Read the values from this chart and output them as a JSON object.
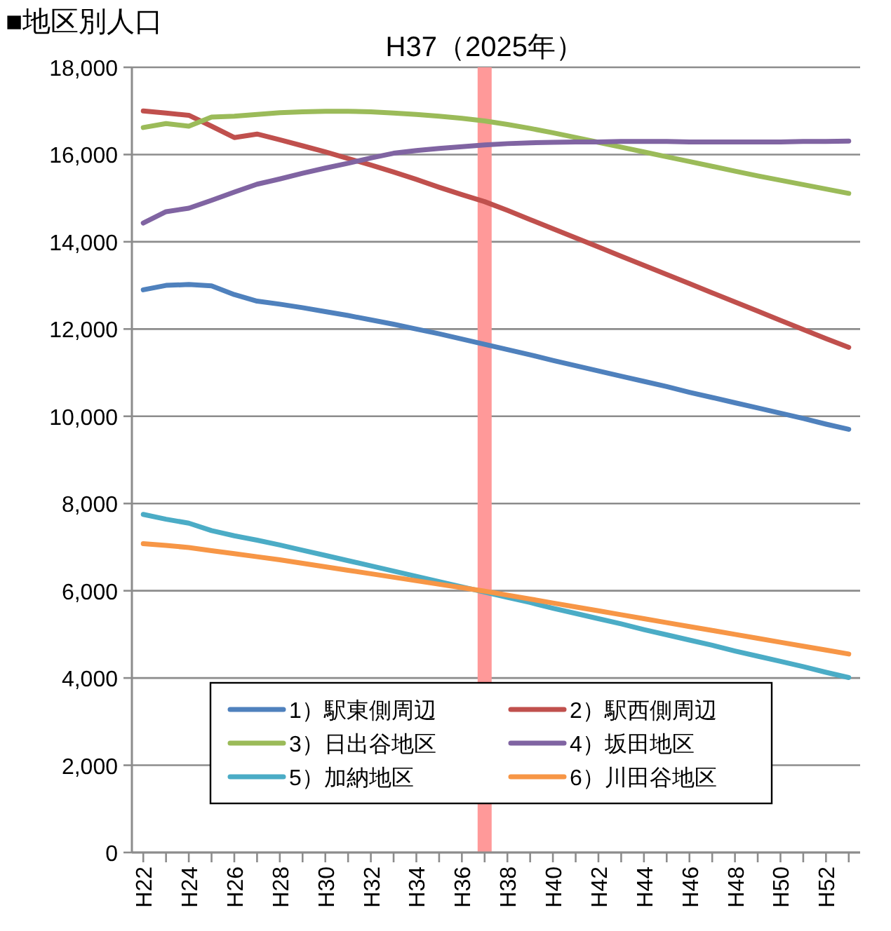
{
  "chart_data": {
    "type": "line",
    "title": "■地区別人口",
    "categories": [
      "H22",
      null,
      "H24",
      null,
      "H26",
      null,
      "H28",
      null,
      "H30",
      null,
      "H32",
      null,
      "H34",
      null,
      "H36",
      null,
      "H38",
      null,
      "H40",
      null,
      "H42",
      null,
      "H44",
      null,
      "H46",
      null,
      "H48",
      null,
      "H50",
      null,
      "H52",
      null
    ],
    "ylim": [
      0,
      18000
    ],
    "yticks": [
      0,
      {
        "value": 2000,
        "label": "2,000"
      },
      {
        "value": 4000,
        "label": "4,000"
      },
      {
        "value": 6000,
        "label": "6,000"
      },
      {
        "value": 8000,
        "label": "8,000"
      },
      {
        "value": 10000,
        "label": "10,000"
      },
      {
        "value": 12000,
        "label": "12,000"
      },
      {
        "value": 14000,
        "label": "14,000"
      },
      {
        "value": 16000,
        "label": "16,000"
      },
      {
        "value": 18000,
        "label": "18,000"
      }
    ],
    "grid": "y",
    "legend": "bottom",
    "annotations": [
      "H37（2025年）"
    ],
    "series": [
      {
        "name": "1）駅東側周辺",
        "color": "#4f81bd",
        "values": [
          12900,
          13000,
          13020,
          12990,
          12790,
          12640,
          12570,
          12490,
          12400,
          12310,
          12210,
          12110,
          12000,
          11890,
          11770,
          11650,
          11530,
          11410,
          11280,
          11160,
          11040,
          10920,
          10800,
          10680,
          10550,
          10430,
          10310,
          10190,
          10070,
          9950,
          9820,
          9700
        ]
      },
      {
        "name": "2）駅西側周辺",
        "color": "#c0504d",
        "values": [
          17000,
          16950,
          16900,
          16650,
          16390,
          16470,
          16340,
          16200,
          16060,
          15910,
          15760,
          15600,
          15430,
          15250,
          15080,
          14920,
          14720,
          14510,
          14300,
          14090,
          13880,
          13670,
          13460,
          13250,
          13040,
          12830,
          12620,
          12410,
          12200,
          11990,
          11780,
          11580
        ]
      },
      {
        "name": "3）日出谷地区",
        "color": "#9bbb59",
        "values": [
          16620,
          16710,
          16650,
          16860,
          16880,
          16920,
          16960,
          16980,
          16990,
          16990,
          16980,
          16950,
          16920,
          16880,
          16830,
          16770,
          16690,
          16600,
          16500,
          16390,
          16280,
          16170,
          16060,
          15950,
          15840,
          15730,
          15620,
          15510,
          15410,
          15310,
          15210,
          15110
        ]
      },
      {
        "name": "4）坂田地区",
        "color": "#8064a2",
        "values": [
          14430,
          14690,
          14770,
          14950,
          15140,
          15320,
          15440,
          15570,
          15690,
          15800,
          15920,
          16030,
          16090,
          16140,
          16180,
          16220,
          16250,
          16270,
          16280,
          16290,
          16290,
          16300,
          16300,
          16300,
          16290,
          16290,
          16290,
          16290,
          16290,
          16300,
          16300,
          16310
        ]
      },
      {
        "name": "5）加納地区",
        "color": "#4bacc6",
        "values": [
          7750,
          7640,
          7550,
          7380,
          7260,
          7160,
          7050,
          6930,
          6810,
          6690,
          6570,
          6450,
          6330,
          6210,
          6090,
          5970,
          5850,
          5730,
          5600,
          5480,
          5360,
          5240,
          5110,
          4990,
          4870,
          4750,
          4620,
          4500,
          4380,
          4260,
          4130,
          4010
        ]
      },
      {
        "name": "6）川田谷地区",
        "color": "#f79646",
        "values": [
          7080,
          7040,
          6990,
          6920,
          6850,
          6780,
          6710,
          6630,
          6550,
          6470,
          6390,
          6310,
          6230,
          6150,
          6070,
          5990,
          5900,
          5810,
          5720,
          5630,
          5540,
          5450,
          5360,
          5270,
          5180,
          5090,
          5000,
          4910,
          4820,
          4730,
          4640,
          4550
        ]
      }
    ]
  }
}
